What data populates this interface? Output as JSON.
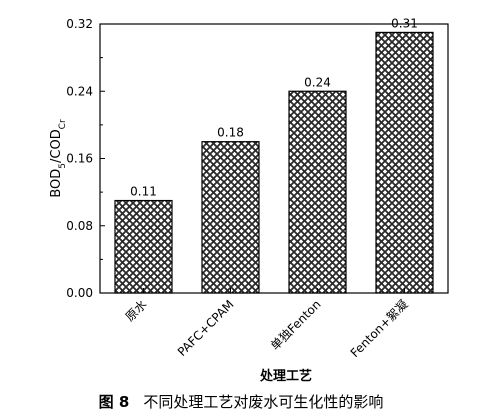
{
  "chart_data": {
    "type": "bar",
    "categories": [
      "原水",
      "PAFC+CPAM",
      "单独Fenton",
      "Fenton+絮凝"
    ],
    "values": [
      0.11,
      0.18,
      0.24,
      0.31
    ],
    "data_labels": [
      "0.11",
      "0.18",
      "0.24",
      "0.31"
    ],
    "xlabel": "处理工艺",
    "ylabel": {
      "main": "BOD",
      "sub1": "5",
      "mid": "/COD",
      "sub2": "Cr"
    },
    "ylim": [
      0,
      0.32
    ],
    "yticks": [
      0.0,
      0.08,
      0.16,
      0.24,
      0.32
    ],
    "ytick_labels": [
      "0.00",
      "0.08",
      "0.16",
      "0.24",
      "0.32"
    ],
    "bar_fill": "crosshatch",
    "bar_color": "#3a3a3a",
    "grid": false
  },
  "caption": {
    "number": "图 8",
    "text": "不同处理工艺对废水可生化性的影响"
  }
}
